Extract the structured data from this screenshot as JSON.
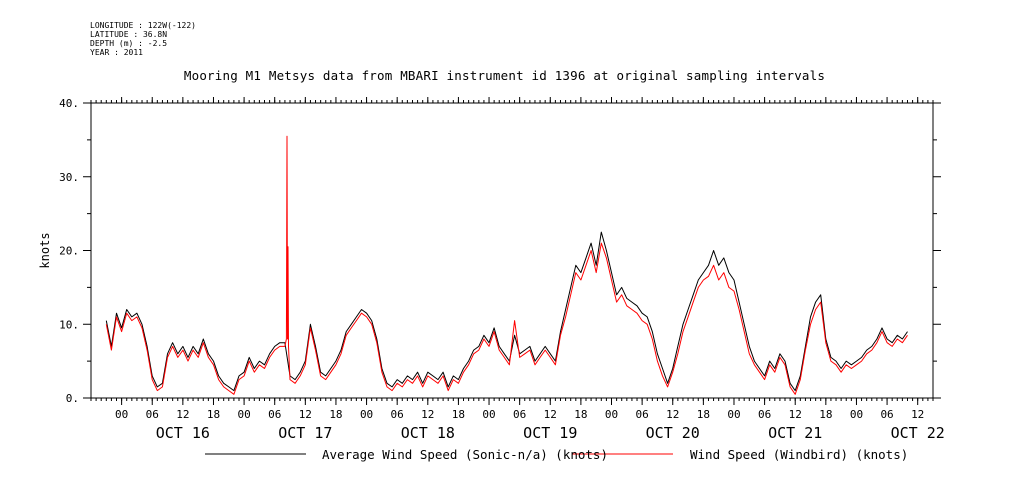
{
  "header": {
    "metadata_lines": [
      "LONGITUDE : 122W(-122)",
      "LATITUDE : 36.8N",
      "DEPTH (m) : -2.5",
      "YEAR : 2011"
    ],
    "title": "Mooring M1 Metsys data from MBARI instrument id 1396 at original sampling intervals"
  },
  "chart_data": {
    "type": "line",
    "title": "Mooring M1 Metsys data from MBARI instrument id 1396 at original sampling intervals",
    "xlabel": "",
    "ylabel": "knots",
    "ylim": [
      0,
      40
    ],
    "yticks": [
      0,
      10,
      20,
      30,
      40
    ],
    "ytick_labels": [
      "0.",
      "10.",
      "20.",
      "30.",
      "40."
    ],
    "xlim_hours": [
      -6,
      159
    ],
    "hour_ticks": [
      "00",
      "06",
      "12",
      "18",
      "00",
      "06",
      "12",
      "18",
      "00",
      "06",
      "12",
      "18",
      "00",
      "06",
      "12",
      "18",
      "00",
      "06",
      "12",
      "18",
      "00",
      "06",
      "12",
      "18",
      "00",
      "06",
      "12"
    ],
    "day_labels": [
      "OCT 16",
      "OCT 17",
      "OCT 18",
      "OCT 19",
      "OCT 20",
      "OCT 21",
      "OCT 22"
    ],
    "x_unit": "hours after 2011-10-16 00:00",
    "series": [
      {
        "name": "Average Wind Speed (Sonic-n/a) (knots)",
        "color": "#000000",
        "points": [
          [
            -3,
            10.5
          ],
          [
            -2,
            7
          ],
          [
            -1,
            11.5
          ],
          [
            0,
            9.5
          ],
          [
            1,
            12
          ],
          [
            2,
            11
          ],
          [
            3,
            11.5
          ],
          [
            4,
            10
          ],
          [
            5,
            7
          ],
          [
            6,
            3
          ],
          [
            7,
            1.5
          ],
          [
            8,
            2
          ],
          [
            9,
            6
          ],
          [
            10,
            7.5
          ],
          [
            11,
            6
          ],
          [
            12,
            7
          ],
          [
            13,
            5.5
          ],
          [
            14,
            7
          ],
          [
            15,
            6
          ],
          [
            16,
            8
          ],
          [
            17,
            6
          ],
          [
            18,
            5
          ],
          [
            19,
            3
          ],
          [
            20,
            2
          ],
          [
            21,
            1.5
          ],
          [
            22,
            1
          ],
          [
            23,
            3
          ],
          [
            24,
            3.5
          ],
          [
            25,
            5.5
          ],
          [
            26,
            4
          ],
          [
            27,
            5
          ],
          [
            28,
            4.5
          ],
          [
            29,
            6
          ],
          [
            30,
            7
          ],
          [
            31,
            7.5
          ],
          [
            32,
            7.5
          ],
          [
            33,
            3
          ],
          [
            34,
            2.5
          ],
          [
            35,
            3.5
          ],
          [
            36,
            5
          ],
          [
            37,
            10
          ],
          [
            38,
            7
          ],
          [
            39,
            3.5
          ],
          [
            40,
            3
          ],
          [
            41,
            4
          ],
          [
            42,
            5
          ],
          [
            43,
            6.5
          ],
          [
            44,
            9
          ],
          [
            45,
            10
          ],
          [
            46,
            11
          ],
          [
            47,
            12
          ],
          [
            48,
            11.5
          ],
          [
            49,
            10.5
          ],
          [
            50,
            8
          ],
          [
            51,
            4
          ],
          [
            52,
            2
          ],
          [
            53,
            1.5
          ],
          [
            54,
            2.5
          ],
          [
            55,
            2
          ],
          [
            56,
            3
          ],
          [
            57,
            2.5
          ],
          [
            58,
            3.5
          ],
          [
            59,
            2
          ],
          [
            60,
            3.5
          ],
          [
            61,
            3
          ],
          [
            62,
            2.5
          ],
          [
            63,
            3.5
          ],
          [
            64,
            1.5
          ],
          [
            65,
            3
          ],
          [
            66,
            2.5
          ],
          [
            67,
            4
          ],
          [
            68,
            5
          ],
          [
            69,
            6.5
          ],
          [
            70,
            7
          ],
          [
            71,
            8.5
          ],
          [
            72,
            7.5
          ],
          [
            73,
            9.5
          ],
          [
            74,
            7
          ],
          [
            75,
            6
          ],
          [
            76,
            5
          ],
          [
            77,
            8.5
          ],
          [
            78,
            6
          ],
          [
            79,
            6.5
          ],
          [
            80,
            7
          ],
          [
            81,
            5
          ],
          [
            82,
            6
          ],
          [
            83,
            7
          ],
          [
            84,
            6
          ],
          [
            85,
            5
          ],
          [
            86,
            9
          ],
          [
            87,
            12
          ],
          [
            88,
            15
          ],
          [
            89,
            18
          ],
          [
            90,
            17
          ],
          [
            91,
            19
          ],
          [
            92,
            21
          ],
          [
            93,
            18
          ],
          [
            94,
            22.5
          ],
          [
            95,
            20
          ],
          [
            96,
            17
          ],
          [
            97,
            14
          ],
          [
            98,
            15
          ],
          [
            99,
            13.5
          ],
          [
            100,
            13
          ],
          [
            101,
            12.5
          ],
          [
            102,
            11.5
          ],
          [
            103,
            11
          ],
          [
            104,
            9
          ],
          [
            105,
            6
          ],
          [
            106,
            4
          ],
          [
            107,
            2
          ],
          [
            108,
            4
          ],
          [
            109,
            7
          ],
          [
            110,
            10
          ],
          [
            111,
            12
          ],
          [
            112,
            14
          ],
          [
            113,
            16
          ],
          [
            114,
            17
          ],
          [
            115,
            18
          ],
          [
            116,
            20
          ],
          [
            117,
            18
          ],
          [
            118,
            19
          ],
          [
            119,
            17
          ],
          [
            120,
            16
          ],
          [
            121,
            13
          ],
          [
            122,
            10
          ],
          [
            123,
            7
          ],
          [
            124,
            5
          ],
          [
            125,
            4
          ],
          [
            126,
            3
          ],
          [
            127,
            5
          ],
          [
            128,
            4
          ],
          [
            129,
            6
          ],
          [
            130,
            5
          ],
          [
            131,
            2
          ],
          [
            132,
            1
          ],
          [
            133,
            3
          ],
          [
            134,
            7
          ],
          [
            135,
            11
          ],
          [
            136,
            13
          ],
          [
            137,
            14
          ],
          [
            138,
            8
          ],
          [
            139,
            5.5
          ],
          [
            140,
            5
          ],
          [
            141,
            4
          ],
          [
            142,
            5
          ],
          [
            143,
            4.5
          ],
          [
            144,
            5
          ],
          [
            145,
            5.5
          ],
          [
            146,
            6.5
          ],
          [
            147,
            7
          ],
          [
            148,
            8
          ],
          [
            149,
            9.5
          ],
          [
            150,
            8
          ],
          [
            151,
            7.5
          ],
          [
            152,
            8.5
          ],
          [
            153,
            8
          ],
          [
            154,
            9
          ]
        ]
      },
      {
        "name": "Wind Speed (Windbird) (knots)",
        "color": "#ff0000",
        "points": [
          [
            -3,
            10
          ],
          [
            -2,
            6.5
          ],
          [
            -1,
            11
          ],
          [
            0,
            9
          ],
          [
            1,
            11.5
          ],
          [
            2,
            10.5
          ],
          [
            3,
            11
          ],
          [
            4,
            9.5
          ],
          [
            5,
            6.5
          ],
          [
            6,
            2.5
          ],
          [
            7,
            1
          ],
          [
            8,
            1.5
          ],
          [
            9,
            5.5
          ],
          [
            10,
            7
          ],
          [
            11,
            5.5
          ],
          [
            12,
            6.5
          ],
          [
            13,
            5
          ],
          [
            14,
            6.5
          ],
          [
            15,
            5.5
          ],
          [
            16,
            7.5
          ],
          [
            17,
            5.5
          ],
          [
            18,
            4.5
          ],
          [
            19,
            2.5
          ],
          [
            20,
            1.5
          ],
          [
            21,
            1
          ],
          [
            22,
            0.5
          ],
          [
            23,
            2.5
          ],
          [
            24,
            3
          ],
          [
            25,
            5
          ],
          [
            26,
            3.5
          ],
          [
            27,
            4.5
          ],
          [
            28,
            4
          ],
          [
            29,
            5.5
          ],
          [
            30,
            6.5
          ],
          [
            31,
            7
          ],
          [
            32,
            7
          ],
          [
            32.3,
            8
          ],
          [
            32.4,
            35.5
          ],
          [
            32.5,
            8
          ],
          [
            32.6,
            20.5
          ],
          [
            32.7,
            7
          ],
          [
            33,
            2.5
          ],
          [
            34,
            2
          ],
          [
            35,
            3
          ],
          [
            36,
            4.5
          ],
          [
            37,
            9.5
          ],
          [
            38,
            6.5
          ],
          [
            39,
            3
          ],
          [
            40,
            2.5
          ],
          [
            41,
            3.5
          ],
          [
            42,
            4.5
          ],
          [
            43,
            6
          ],
          [
            44,
            8.5
          ],
          [
            45,
            9.5
          ],
          [
            46,
            10.5
          ],
          [
            47,
            11.5
          ],
          [
            48,
            11
          ],
          [
            49,
            10
          ],
          [
            50,
            7.5
          ],
          [
            51,
            3.5
          ],
          [
            52,
            1.5
          ],
          [
            53,
            1
          ],
          [
            54,
            2
          ],
          [
            55,
            1.5
          ],
          [
            56,
            2.5
          ],
          [
            57,
            2
          ],
          [
            58,
            3
          ],
          [
            59,
            1.5
          ],
          [
            60,
            3
          ],
          [
            61,
            2.5
          ],
          [
            62,
            2
          ],
          [
            63,
            3
          ],
          [
            64,
            1
          ],
          [
            65,
            2.5
          ],
          [
            66,
            2
          ],
          [
            67,
            3.5
          ],
          [
            68,
            4.5
          ],
          [
            69,
            6
          ],
          [
            70,
            6.5
          ],
          [
            71,
            8
          ],
          [
            72,
            7
          ],
          [
            73,
            9
          ],
          [
            74,
            6.5
          ],
          [
            75,
            5.5
          ],
          [
            76,
            4.5
          ],
          [
            77,
            10.5
          ],
          [
            78,
            5.5
          ],
          [
            79,
            6
          ],
          [
            80,
            6.5
          ],
          [
            81,
            4.5
          ],
          [
            82,
            5.5
          ],
          [
            83,
            6.5
          ],
          [
            84,
            5.5
          ],
          [
            85,
            4.5
          ],
          [
            86,
            8.5
          ],
          [
            87,
            11
          ],
          [
            88,
            14
          ],
          [
            89,
            17
          ],
          [
            90,
            16
          ],
          [
            91,
            18
          ],
          [
            92,
            20
          ],
          [
            93,
            17
          ],
          [
            94,
            21
          ],
          [
            95,
            19
          ],
          [
            96,
            16
          ],
          [
            97,
            13
          ],
          [
            98,
            14
          ],
          [
            99,
            12.5
          ],
          [
            100,
            12
          ],
          [
            101,
            11.5
          ],
          [
            102,
            10.5
          ],
          [
            103,
            10
          ],
          [
            104,
            8
          ],
          [
            105,
            5
          ],
          [
            106,
            3
          ],
          [
            107,
            1.5
          ],
          [
            108,
            3.5
          ],
          [
            109,
            6
          ],
          [
            110,
            9
          ],
          [
            111,
            11
          ],
          [
            112,
            13
          ],
          [
            113,
            15
          ],
          [
            114,
            16
          ],
          [
            115,
            16.5
          ],
          [
            116,
            18
          ],
          [
            117,
            16
          ],
          [
            118,
            17
          ],
          [
            119,
            15
          ],
          [
            120,
            14.5
          ],
          [
            121,
            12
          ],
          [
            122,
            9
          ],
          [
            123,
            6
          ],
          [
            124,
            4.5
          ],
          [
            125,
            3.5
          ],
          [
            126,
            2.5
          ],
          [
            127,
            4.5
          ],
          [
            128,
            3.5
          ],
          [
            129,
            5.5
          ],
          [
            130,
            4.5
          ],
          [
            131,
            1.5
          ],
          [
            132,
            0.5
          ],
          [
            133,
            2.5
          ],
          [
            134,
            6.5
          ],
          [
            135,
            10
          ],
          [
            136,
            12
          ],
          [
            137,
            13
          ],
          [
            138,
            7.5
          ],
          [
            139,
            5
          ],
          [
            140,
            4.5
          ],
          [
            141,
            3.5
          ],
          [
            142,
            4.5
          ],
          [
            143,
            4
          ],
          [
            144,
            4.5
          ],
          [
            145,
            5
          ],
          [
            146,
            6
          ],
          [
            147,
            6.5
          ],
          [
            148,
            7.5
          ],
          [
            149,
            9
          ],
          [
            150,
            7.5
          ],
          [
            151,
            7
          ],
          [
            152,
            8
          ],
          [
            153,
            7.5
          ],
          [
            154,
            8.5
          ]
        ]
      }
    ],
    "legend_position": "bottom",
    "grid": false
  }
}
